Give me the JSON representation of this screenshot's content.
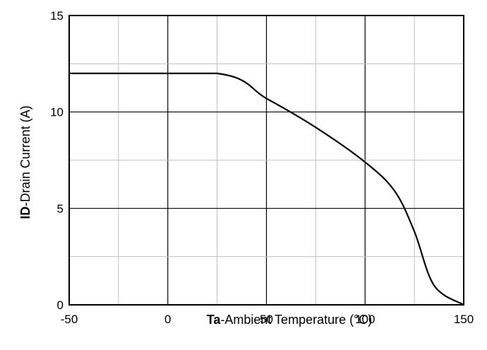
{
  "chart_data": {
    "type": "line",
    "title": "",
    "xlabel_prefix": "Ta",
    "xlabel": "-Ambient Temperature (°C)",
    "ylabel_prefix": "ID",
    "ylabel": "-Drain Current (A)",
    "xlim": [
      -50,
      150
    ],
    "ylim": [
      0,
      15
    ],
    "x_ticks": [
      -50,
      0,
      50,
      100,
      150
    ],
    "x_tick_labels": [
      "-50",
      "0",
      "50",
      "100",
      "150"
    ],
    "y_ticks": [
      0,
      5,
      10,
      15
    ],
    "y_tick_labels": [
      "0",
      "5",
      "10",
      "15"
    ],
    "x_grid_step": 25,
    "y_grid_step": 2.5,
    "grid": true,
    "legend": "none",
    "series": [
      {
        "x": [
          -50,
          25,
          50,
          75,
          100,
          115,
          125,
          135,
          150
        ],
        "y": [
          12.0,
          12.0,
          10.7,
          9.2,
          7.4,
          5.9,
          3.8,
          1.0,
          0
        ]
      }
    ],
    "colors": {
      "line": "#000000",
      "grid": "#bfbfbf",
      "frame": "#000000"
    }
  }
}
